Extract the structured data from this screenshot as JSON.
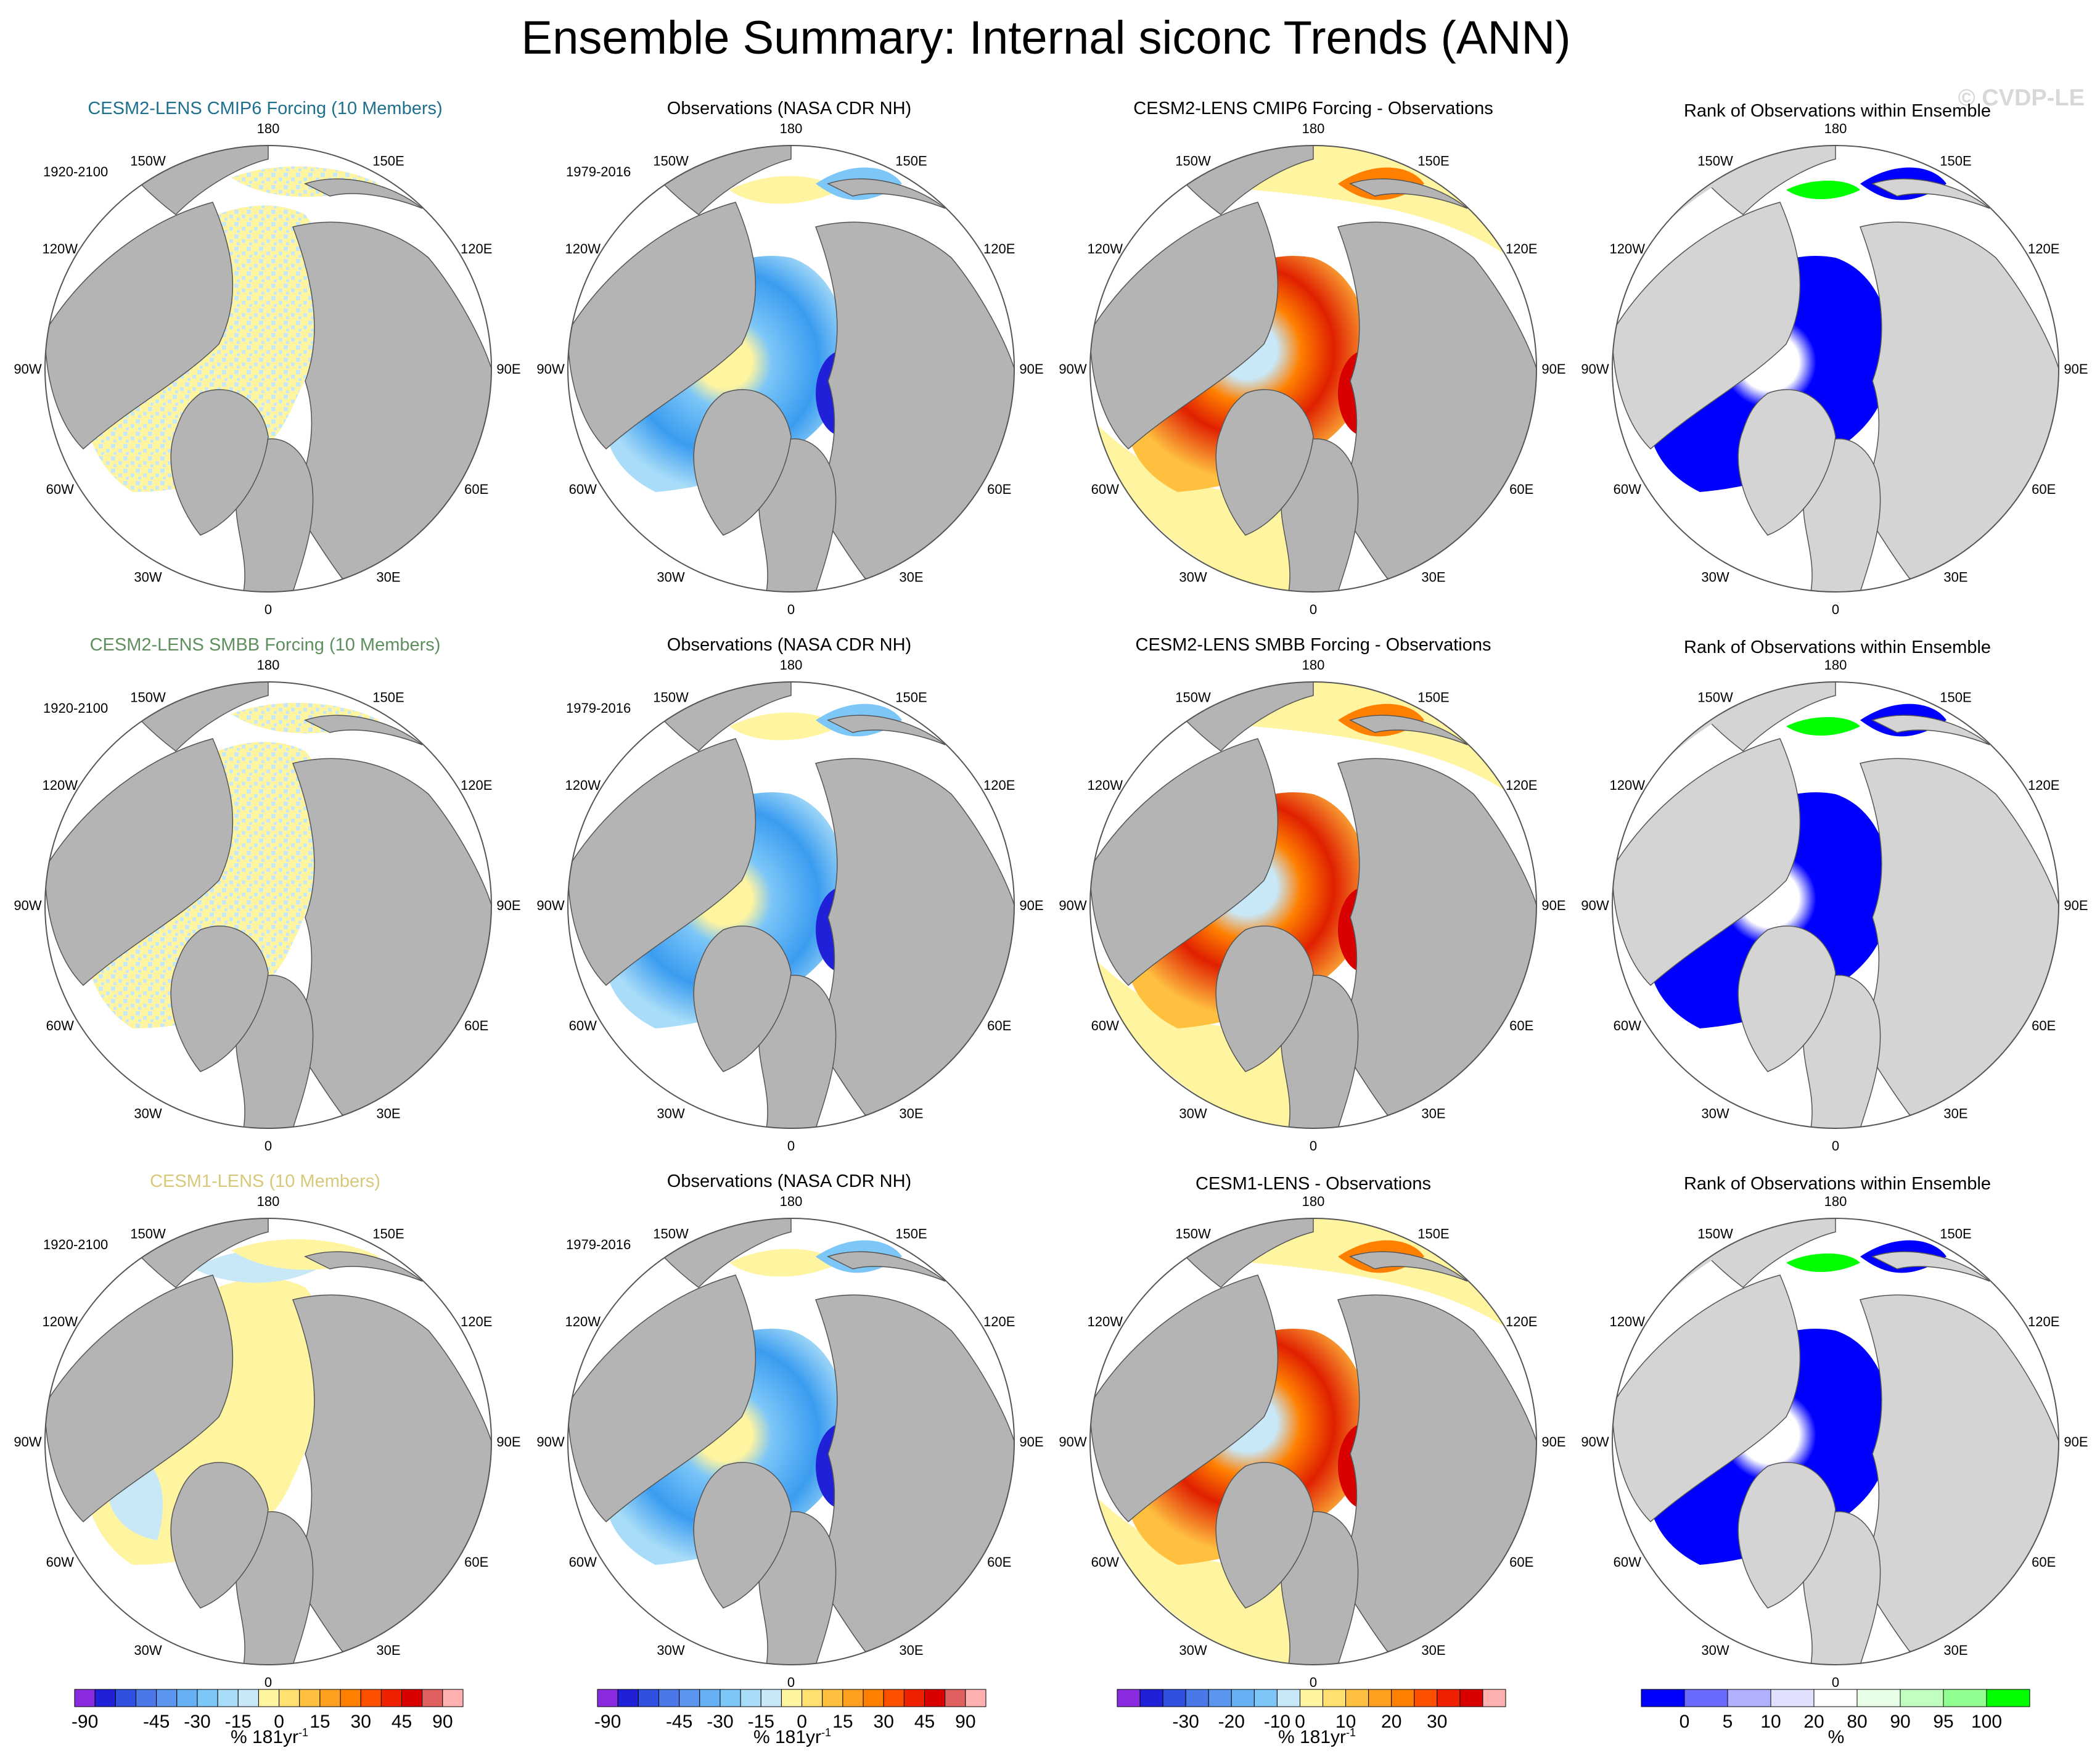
{
  "page": {
    "title": "Ensemble Summary: Internal siconc Trends (ANN)",
    "watermark": "© CVDP-LE"
  },
  "colors": {
    "land": "#b4b4b4",
    "rank_land": "#d4d4d4",
    "ocean": "#ffffff",
    "row1_title": "#1f6f8f",
    "row2_title": "#5f8f5f",
    "row3_title": "#d8c87a"
  },
  "longitude_labels": [
    "180",
    "150W",
    "150E",
    "120W",
    "120E",
    "90W",
    "90E",
    "60W",
    "60E",
    "30W",
    "30E",
    "0"
  ],
  "rows": [
    {
      "ensemble_title": "CESM2-LENS CMIP6 Forcing (10 Members)",
      "ensemble_period": "1920-2100",
      "obs_title": "Observations (NASA CDR NH)",
      "obs_period": "1979-2016",
      "diff_title": "CESM2-LENS CMIP6 Forcing - Observations",
      "rank_title": "Rank of Observations within Ensemble"
    },
    {
      "ensemble_title": "CESM2-LENS SMBB Forcing (10 Members)",
      "ensemble_period": "1920-2100",
      "obs_title": "Observations (NASA CDR NH)",
      "obs_period": "1979-2016",
      "diff_title": "CESM2-LENS SMBB Forcing - Observations",
      "rank_title": "Rank of Observations within Ensemble"
    },
    {
      "ensemble_title": "CESM1-LENS (10 Members)",
      "ensemble_period": "1920-2100",
      "obs_title": "Observations (NASA CDR NH)",
      "obs_period": "1979-2016",
      "diff_title": "CESM1-LENS - Observations",
      "rank_title": "Rank of Observations within Ensemble"
    }
  ],
  "chart_data": [
    {
      "type": "colorbar",
      "applies_to": "columns 1-2 (ensemble trend, observed trend)",
      "label": "% 181yr",
      "label_superscript": "-1",
      "ticks": [
        "-90",
        "-45",
        "-30",
        "-15",
        "0",
        "15",
        "30",
        "45",
        "90"
      ],
      "colors": [
        "#8a2be2",
        "#2020d8",
        "#3050e0",
        "#4a78e8",
        "#5a96f0",
        "#68b0f4",
        "#7cc6f8",
        "#a8dcf8",
        "#c8e8f8",
        "#fff4a0",
        "#ffe070",
        "#ffc040",
        "#ffa020",
        "#ff8000",
        "#ff5000",
        "#f02000",
        "#d80000",
        "#e06060",
        "#ffb0b0"
      ]
    },
    {
      "type": "colorbar",
      "applies_to": "column 3 (ensemble - observations)",
      "label": "% 181yr",
      "label_superscript": "-1",
      "ticks": [
        "-30",
        "-20",
        "-10",
        "0",
        "10",
        "20",
        "30"
      ],
      "colors": [
        "#8a2be2",
        "#2020d8",
        "#3050e0",
        "#4a78e8",
        "#5a96f0",
        "#68b0f4",
        "#7cc6f8",
        "#c8e8f8",
        "#fff4a0",
        "#ffe070",
        "#ffc040",
        "#ffa020",
        "#ff8000",
        "#ff5000",
        "#f02000",
        "#d80000",
        "#ffb0b0"
      ]
    },
    {
      "type": "colorbar",
      "applies_to": "column 4 (rank of observations)",
      "label": "%",
      "label_superscript": "",
      "ticks": [
        "0",
        "5",
        "10",
        "20",
        "80",
        "90",
        "95",
        "100"
      ],
      "colors": [
        "#0000ff",
        "#6a6aff",
        "#b0b0ff",
        "#e0e0ff",
        "#ffffff",
        "#e8ffe8",
        "#c0ffc0",
        "#90ff90",
        "#00ff00"
      ]
    }
  ]
}
